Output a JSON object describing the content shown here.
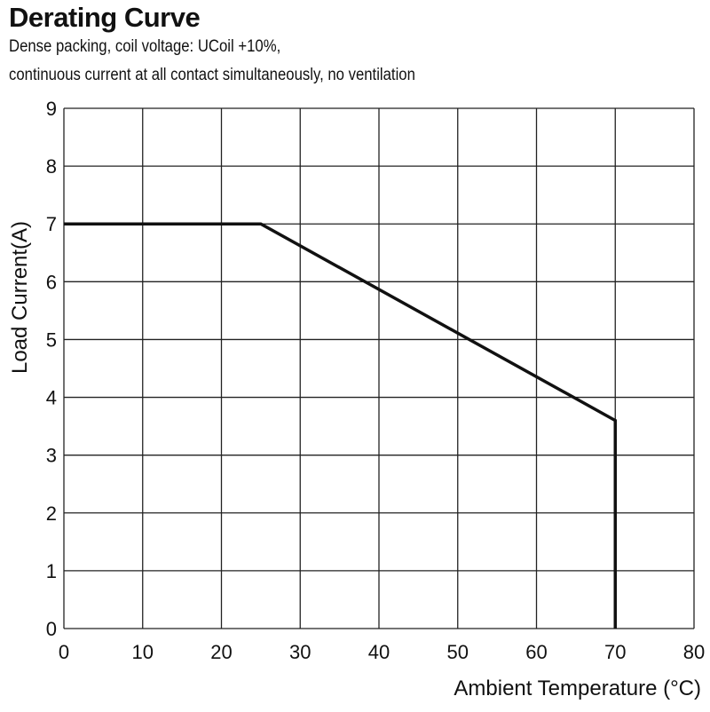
{
  "chart_data": {
    "type": "line",
    "title": "Derating Curve",
    "subtitle_lines": [
      "Dense packing, coil voltage: UCoil +10%,",
      "continuous current at all contact simultaneously, no ventilation"
    ],
    "xlabel": "Ambient Temperature (°C)",
    "ylabel": "Load Current(A)",
    "xlim": [
      0,
      80
    ],
    "ylim": [
      0,
      9
    ],
    "xticks": [
      0,
      10,
      20,
      30,
      40,
      50,
      60,
      70,
      80
    ],
    "yticks": [
      0,
      1,
      2,
      3,
      4,
      5,
      6,
      7,
      8,
      9
    ],
    "grid": true,
    "series": [
      {
        "x": [
          0,
          25,
          70,
          70
        ],
        "y": [
          7,
          7,
          3.6,
          0
        ]
      }
    ],
    "line_color": "#111111",
    "grid_color": "#222222"
  }
}
